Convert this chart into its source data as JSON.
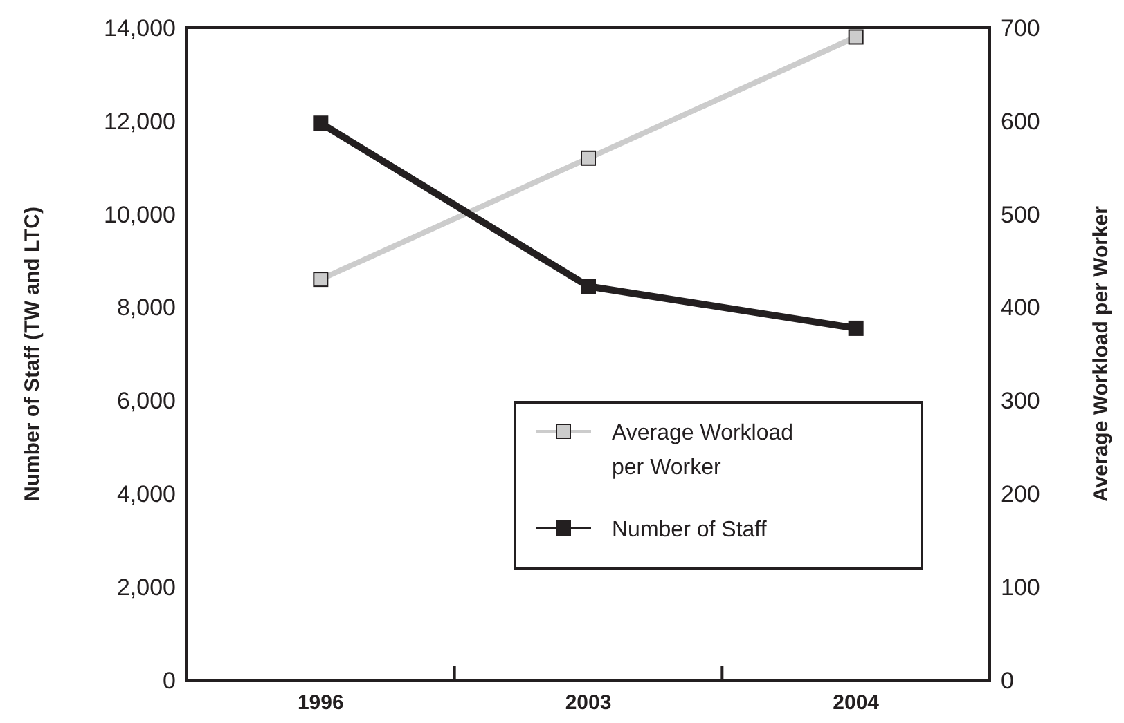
{
  "chart_data": {
    "type": "line",
    "categories": [
      "1996",
      "2003",
      "2004"
    ],
    "ylabel": "Number of Staff (TW and LTC)",
    "y2label": "Average Workload per Worker",
    "ylim": [
      0,
      14000
    ],
    "yticks": [
      {
        "value": 0,
        "label": "0"
      },
      {
        "value": 2000,
        "label": "2,000"
      },
      {
        "value": 4000,
        "label": "4,000"
      },
      {
        "value": 6000,
        "label": "6,000"
      },
      {
        "value": 8000,
        "label": "8,000"
      },
      {
        "value": 10000,
        "label": "10,000"
      },
      {
        "value": 12000,
        "label": "12,000"
      },
      {
        "value": 14000,
        "label": "14,000"
      }
    ],
    "y2lim": [
      0,
      700
    ],
    "y2ticks": [
      0,
      100,
      200,
      300,
      400,
      500,
      600,
      700
    ],
    "legend": "bottom right",
    "marker": "square",
    "line_style": "solid",
    "grid": false,
    "series": [
      {
        "name": "Average Workload\nper Worker",
        "color": "#cccccc",
        "axis": "y2",
        "values": [
          430,
          560,
          690
        ]
      },
      {
        "name": "Number of Staff",
        "color": "#231f20",
        "values": [
          11950,
          8450,
          7550
        ]
      }
    ]
  }
}
